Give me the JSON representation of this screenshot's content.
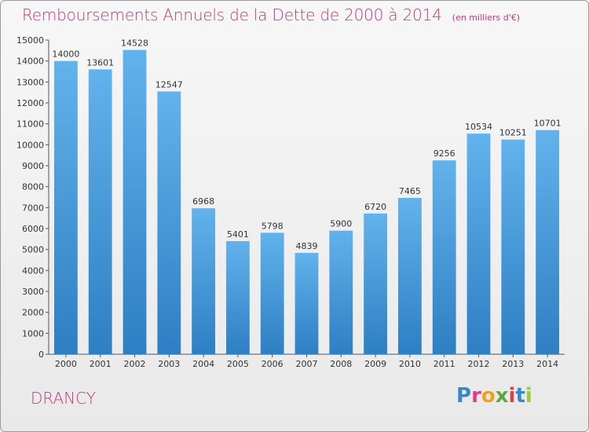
{
  "chart_data": {
    "type": "bar",
    "title": "Remboursements Annuels de la Dette de 2000 à 2014",
    "subtitle": "(en milliers d'€)",
    "xlabel": "",
    "ylabel": "",
    "categories": [
      "2000",
      "2001",
      "2002",
      "2003",
      "2004",
      "2005",
      "2006",
      "2007",
      "2008",
      "2009",
      "2010",
      "2011",
      "2012",
      "2013",
      "2014"
    ],
    "values": [
      14000,
      13601,
      14528,
      12547,
      6968,
      5401,
      5798,
      4839,
      5900,
      6720,
      7465,
      9256,
      10534,
      10251,
      10701
    ],
    "ylim": [
      0,
      15000
    ],
    "yticks": [
      0,
      1000,
      2000,
      3000,
      4000,
      5000,
      6000,
      7000,
      8000,
      9000,
      10000,
      11000,
      12000,
      13000,
      14000,
      15000
    ],
    "grid": false,
    "legend": "none",
    "bar_color": "#3f95d8",
    "bar_color_light": "#5fb0ea"
  },
  "footer": {
    "city": "DRANCY",
    "logo_letters": [
      "P",
      "r",
      "o",
      "x",
      "i",
      "t",
      "i"
    ],
    "logo_colors": [
      "#3a86c8",
      "#e0407a",
      "#f0a020",
      "#5aa83c",
      "#e04040",
      "#3a86c8",
      "#9acd32"
    ]
  },
  "colors": {
    "title": "#c0397a",
    "axis": "#555555"
  }
}
